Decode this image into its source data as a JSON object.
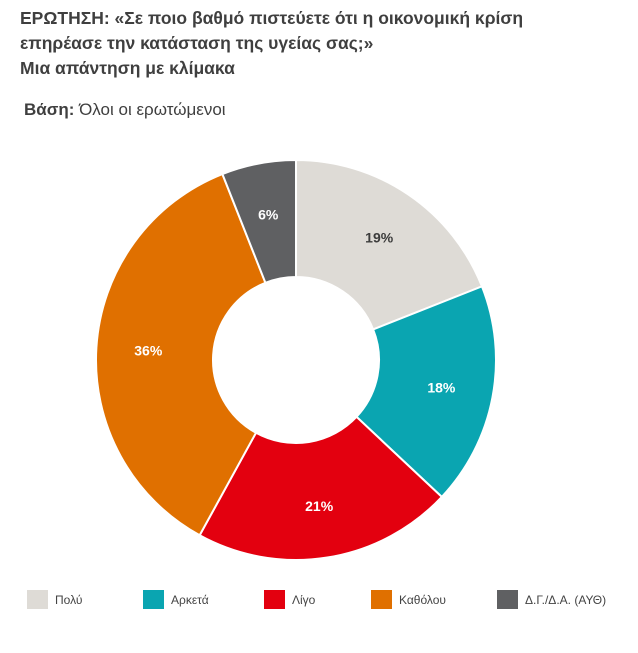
{
  "header": {
    "question_line1": "ΕΡΩΤΗΣΗ: «Σε ποιο βαθμό πιστεύετε ότι  η οικονομική κρίση",
    "question_line2": "επηρέασε την κατάσταση της υγείας σας;»",
    "question_line3": "Μια απάντηση με κλίμακα",
    "base_label": "Βάση:",
    "base_value": " Όλοι οι ερωτώμενοι"
  },
  "chart_data": {
    "type": "pie",
    "donut": true,
    "categories": [
      "Πολύ",
      "Αρκετά",
      "Λίγο",
      "Καθόλου",
      "Δ.Γ./Δ.Α. (ΑΥΘ)"
    ],
    "values": [
      19,
      18,
      21,
      36,
      6
    ],
    "data_labels": [
      "19%",
      "18%",
      "21%",
      "36%",
      "6%"
    ],
    "colors": [
      "#dedbd6",
      "#0aa5b1",
      "#e3000f",
      "#e07000",
      "#5f6062"
    ],
    "label_colors": [
      "#3c3c3c",
      "#ffffff",
      "#ffffff",
      "#ffffff",
      "#ffffff"
    ],
    "legend_position": "bottom"
  }
}
